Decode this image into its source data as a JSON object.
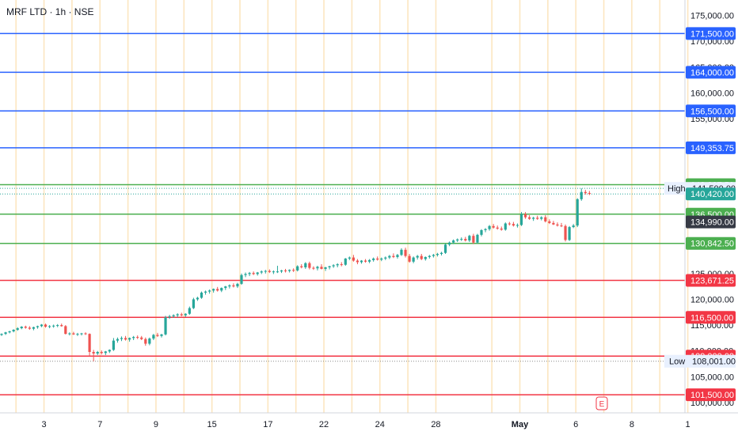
{
  "header": {
    "title": "MRF LTD · 1h · NSE"
  },
  "colors": {
    "up": "#26a69a",
    "down": "#ef5350",
    "resistance": "#2962ff",
    "support_green": "#4caf50",
    "support_red": "#f23645",
    "vgrid": "#fbd38d",
    "axis_text": "#131722",
    "current": "#363a45"
  },
  "chart_data": {
    "type": "candlestick",
    "ylim": [
      98000,
      178000
    ],
    "y_ticks": [
      "100,000.00",
      "105,000.00",
      "110,000.00",
      "115,000.00",
      "120,000.00",
      "125,000.00",
      "150,000.00",
      "155,000.00",
      "160,000.00",
      "165,000.00",
      "170,000.00",
      "175,000.00"
    ],
    "x_ticks": [
      {
        "label": "3",
        "bar": 11
      },
      {
        "label": "7",
        "bar": 25
      },
      {
        "label": "9",
        "bar": 39
      },
      {
        "label": "15",
        "bar": 53
      },
      {
        "label": "17",
        "bar": 67
      },
      {
        "label": "22",
        "bar": 81
      },
      {
        "label": "24",
        "bar": 95
      },
      {
        "label": "28",
        "bar": 109
      },
      {
        "label": "May",
        "bar": 130
      },
      {
        "label": "6",
        "bar": 144
      },
      {
        "label": "8",
        "bar": 158
      },
      {
        "label": "1",
        "bar": 172
      }
    ],
    "horizontal_levels": [
      {
        "value": 171500,
        "label": "171,500.00",
        "kind": "resistance"
      },
      {
        "value": 164000,
        "label": "164,000.00",
        "kind": "resistance"
      },
      {
        "value": 156500,
        "label": "156,500.00",
        "kind": "resistance"
      },
      {
        "value": 149353.75,
        "label": "149,353.75",
        "kind": "resistance"
      },
      {
        "value": 142207.5,
        "label": "142,207.50",
        "kind": "support_green"
      },
      {
        "value": 136500,
        "label": "136,500.00",
        "kind": "support_green"
      },
      {
        "value": 130842.5,
        "label": "130,842.50",
        "kind": "support_green"
      },
      {
        "value": 123671.25,
        "label": "123,671.25",
        "kind": "support_red"
      },
      {
        "value": 116500,
        "label": "116,500.00",
        "kind": "support_red"
      },
      {
        "value": 109000,
        "label": "109,000.00",
        "kind": "support_red"
      },
      {
        "value": 101500,
        "label": "101,500.00",
        "kind": "support_red"
      }
    ],
    "high": {
      "label": "High",
      "value": 141500,
      "text": "141,500.00"
    },
    "low": {
      "label": "Low",
      "value": 108001,
      "text": "108,001.00"
    },
    "last_price": {
      "value": 140420,
      "text": "140,420.00"
    },
    "current_price": {
      "value": 134990,
      "text": "134,990.00"
    },
    "event_marker": "E",
    "candles": [
      [
        113100,
        113400,
        112900,
        113300
      ],
      [
        113300,
        113700,
        113100,
        113600
      ],
      [
        113600,
        113900,
        113400,
        113800
      ],
      [
        113800,
        114200,
        113600,
        114100
      ],
      [
        114100,
        114600,
        113900,
        114400
      ],
      [
        114400,
        114800,
        114200,
        114700
      ],
      [
        114700,
        114900,
        114300,
        114500
      ],
      [
        114500,
        114800,
        114100,
        114300
      ],
      [
        114300,
        114700,
        114000,
        114600
      ],
      [
        114600,
        114900,
        114300,
        114800
      ],
      [
        114800,
        115200,
        114600,
        115100
      ],
      [
        115100,
        115300,
        114500,
        114700
      ],
      [
        114700,
        115000,
        114400,
        114800
      ],
      [
        114800,
        115100,
        114500,
        114900
      ],
      [
        114900,
        115200,
        114600,
        115000
      ],
      [
        115000,
        115300,
        114700,
        114800
      ],
      [
        114800,
        115000,
        113200,
        113300
      ],
      [
        113300,
        113600,
        113000,
        113400
      ],
      [
        113400,
        113700,
        113100,
        113200
      ],
      [
        113200,
        113500,
        112900,
        113300
      ],
      [
        113300,
        113500,
        113000,
        113400
      ],
      [
        113400,
        113600,
        113100,
        113300
      ],
      [
        113300,
        113400,
        109000,
        109800
      ],
      [
        109800,
        110200,
        108001,
        109500
      ],
      [
        109500,
        110000,
        109200,
        109800
      ],
      [
        109800,
        110100,
        109300,
        109600
      ],
      [
        109600,
        110000,
        109200,
        109900
      ],
      [
        109900,
        110300,
        109600,
        110200
      ],
      [
        110200,
        112500,
        110000,
        112000
      ],
      [
        112000,
        112600,
        111600,
        112300
      ],
      [
        112300,
        112800,
        111900,
        112500
      ],
      [
        112500,
        112900,
        112000,
        112200
      ],
      [
        112200,
        112600,
        111800,
        112500
      ],
      [
        112500,
        112900,
        112100,
        112700
      ],
      [
        112700,
        113000,
        112300,
        112600
      ],
      [
        112600,
        112900,
        112100,
        112300
      ],
      [
        112300,
        112600,
        111000,
        111400
      ],
      [
        111400,
        112600,
        111100,
        112400
      ],
      [
        112400,
        113300,
        112100,
        113100
      ],
      [
        113100,
        113500,
        112700,
        112900
      ],
      [
        112900,
        113300,
        112600,
        113200
      ],
      [
        113200,
        116800,
        113000,
        116500
      ],
      [
        116500,
        117000,
        116200,
        116700
      ],
      [
        116700,
        117100,
        116400,
        116900
      ],
      [
        116900,
        117300,
        116500,
        117100
      ],
      [
        117100,
        117400,
        116700,
        116900
      ],
      [
        116900,
        117300,
        116600,
        117200
      ],
      [
        117200,
        118600,
        117000,
        118300
      ],
      [
        118300,
        120300,
        118100,
        120000
      ],
      [
        120000,
        120500,
        119700,
        120300
      ],
      [
        120300,
        121500,
        120100,
        121300
      ],
      [
        121300,
        121700,
        120900,
        121500
      ],
      [
        121500,
        121900,
        121100,
        121700
      ],
      [
        121700,
        122100,
        121300,
        122000
      ],
      [
        122000,
        122400,
        121500,
        121700
      ],
      [
        121700,
        122300,
        121400,
        122200
      ],
      [
        122200,
        122600,
        121800,
        122500
      ],
      [
        122500,
        122900,
        122100,
        122700
      ],
      [
        122700,
        123100,
        122300,
        122500
      ],
      [
        122500,
        123200,
        122200,
        123000
      ],
      [
        123000,
        125000,
        122800,
        124700
      ],
      [
        124700,
        125200,
        124300,
        124900
      ],
      [
        124900,
        125300,
        124500,
        125100
      ],
      [
        125100,
        125400,
        124700,
        124900
      ],
      [
        124900,
        125300,
        124600,
        125200
      ],
      [
        125200,
        125600,
        124900,
        125400
      ],
      [
        125400,
        125700,
        125000,
        125500
      ],
      [
        125500,
        125800,
        125100,
        125300
      ],
      [
        125300,
        125600,
        124900,
        125400
      ],
      [
        125400,
        126500,
        125100,
        125400
      ],
      [
        125400,
        125700,
        125100,
        125600
      ],
      [
        125600,
        125900,
        125200,
        125500
      ],
      [
        125500,
        125800,
        125200,
        125700
      ],
      [
        125700,
        126000,
        125300,
        125600
      ],
      [
        125600,
        126600,
        125400,
        126400
      ],
      [
        126400,
        126800,
        126000,
        126200
      ],
      [
        126200,
        127200,
        125900,
        127000
      ],
      [
        127000,
        127300,
        125800,
        126100
      ],
      [
        126100,
        126400,
        125700,
        126000
      ],
      [
        126000,
        126500,
        125600,
        126300
      ],
      [
        126300,
        126800,
        125800,
        125900
      ],
      [
        125900,
        126300,
        125500,
        126200
      ],
      [
        126200,
        126500,
        125800,
        126400
      ],
      [
        126400,
        126800,
        126100,
        126600
      ],
      [
        126600,
        127000,
        126200,
        126800
      ],
      [
        126800,
        127200,
        126400,
        126700
      ],
      [
        126700,
        128000,
        126500,
        127900
      ],
      [
        127900,
        128300,
        127600,
        128100
      ],
      [
        128100,
        128600,
        127300,
        127500
      ],
      [
        127500,
        127800,
        126800,
        127200
      ],
      [
        127200,
        127600,
        126900,
        127500
      ],
      [
        127500,
        127800,
        127100,
        127300
      ],
      [
        127300,
        127800,
        127000,
        127600
      ],
      [
        127600,
        128100,
        127300,
        127900
      ],
      [
        127900,
        128300,
        127500,
        127700
      ],
      [
        127700,
        128100,
        127400,
        127900
      ],
      [
        127900,
        128300,
        127600,
        128100
      ],
      [
        128100,
        128600,
        127800,
        128400
      ],
      [
        128400,
        128900,
        128000,
        128200
      ],
      [
        128200,
        128800,
        127900,
        128600
      ],
      [
        128600,
        129900,
        128400,
        129600
      ],
      [
        129600,
        130000,
        128100,
        128400
      ],
      [
        128400,
        128800,
        127100,
        127300
      ],
      [
        127300,
        128300,
        127000,
        128100
      ],
      [
        128100,
        128600,
        127700,
        128400
      ],
      [
        128400,
        128800,
        127600,
        127800
      ],
      [
        127800,
        128300,
        127500,
        128200
      ],
      [
        128200,
        128600,
        127900,
        128400
      ],
      [
        128400,
        128800,
        128100,
        128600
      ],
      [
        128600,
        129000,
        128300,
        128800
      ],
      [
        128800,
        129200,
        128500,
        129000
      ],
      [
        129000,
        130800,
        128800,
        130600
      ],
      [
        130600,
        131200,
        130300,
        131000
      ],
      [
        131000,
        131600,
        130700,
        131400
      ],
      [
        131400,
        131800,
        131100,
        131600
      ],
      [
        131600,
        132000,
        131300,
        131700
      ],
      [
        131700,
        132100,
        131200,
        131400
      ],
      [
        131400,
        132500,
        131100,
        132300
      ],
      [
        132300,
        132700,
        130700,
        131000
      ],
      [
        131000,
        132700,
        130800,
        132500
      ],
      [
        132500,
        133600,
        132200,
        133400
      ],
      [
        133400,
        133800,
        133000,
        133600
      ],
      [
        133600,
        134400,
        133300,
        134200
      ],
      [
        134200,
        134600,
        133700,
        133900
      ],
      [
        133900,
        134300,
        133500,
        133700
      ],
      [
        133700,
        134100,
        133300,
        133500
      ],
      [
        133500,
        134900,
        133300,
        134700
      ],
      [
        134700,
        135000,
        134300,
        134600
      ],
      [
        134600,
        135000,
        134100,
        134300
      ],
      [
        134300,
        134700,
        133900,
        134400
      ],
      [
        134400,
        136900,
        134200,
        136500
      ],
      [
        136500,
        136900,
        135600,
        135900
      ],
      [
        135900,
        136300,
        135400,
        135600
      ],
      [
        135600,
        136000,
        135200,
        135800
      ],
      [
        135800,
        136200,
        135400,
        135600
      ],
      [
        135600,
        136100,
        135300,
        135900
      ],
      [
        135900,
        136300,
        134900,
        135100
      ],
      [
        135100,
        135500,
        134600,
        134800
      ],
      [
        134800,
        135200,
        134400,
        134500
      ],
      [
        134500,
        134900,
        134100,
        134300
      ],
      [
        134300,
        134800,
        134000,
        134200
      ],
      [
        134200,
        134500,
        131200,
        131500
      ],
      [
        131500,
        134200,
        131300,
        134000
      ],
      [
        134000,
        134600,
        133800,
        134300
      ],
      [
        134300,
        139600,
        134000,
        139400
      ],
      [
        139400,
        141500,
        139100,
        140800
      ],
      [
        140800,
        141200,
        140300,
        140600
      ],
      [
        140600,
        141000,
        140200,
        140420
      ]
    ]
  }
}
